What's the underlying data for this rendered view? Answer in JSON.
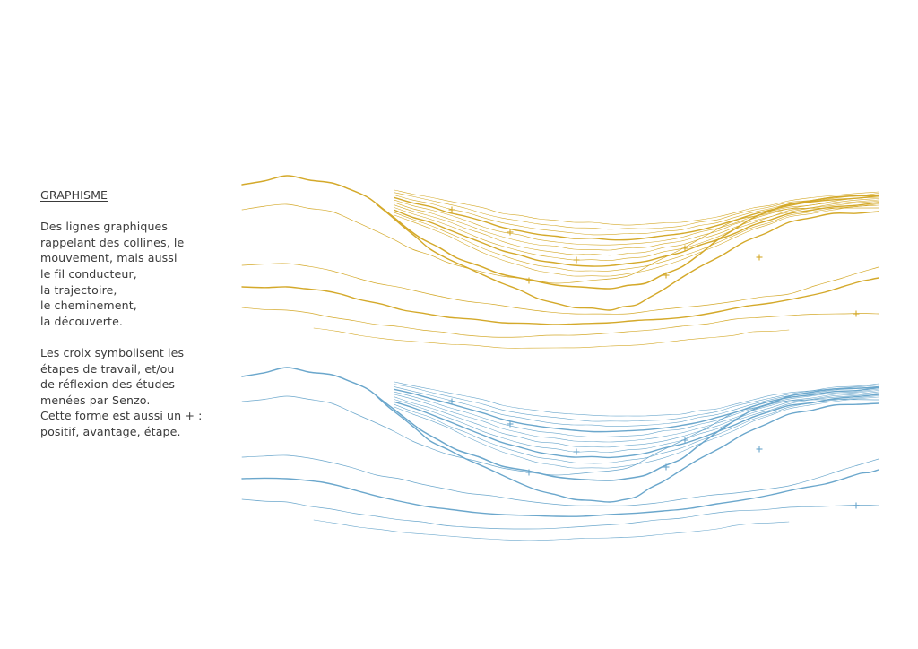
{
  "heading": "GRAPHISME",
  "paragraph_1": "Des lignes graphiques\nrappelant des collines, le\nmouvement, mais aussi\nle fil conducteur,\nla trajectoire,\n le cheminement,\nla découverte.",
  "paragraph_2": "Les croix symbolisent les\nétapes de travail, et/ou\nde réflexion des études\nmenées par Senzo.\nCette forme est aussi un + :\npositif, avantage, étape.",
  "colors": {
    "text": "#3a3a3a",
    "yellow": "#d4a92a",
    "blue": "#6ba7cc"
  },
  "icons": [
    "plus-icon"
  ]
}
